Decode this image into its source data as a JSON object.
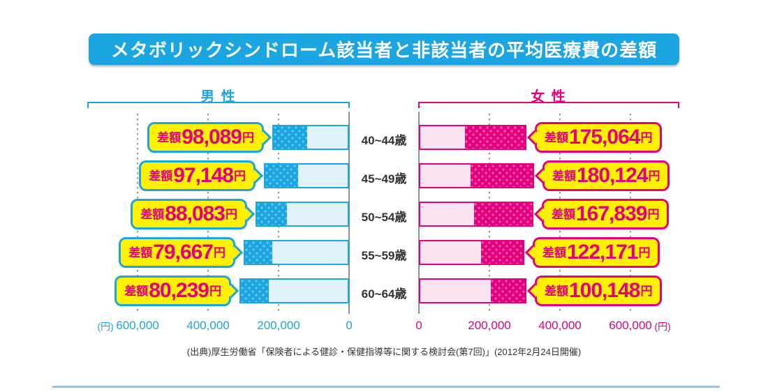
{
  "title": "メタボリックシンドローム該当者と非該当者の平均医療費の差額",
  "source": "(出典)厚生労働省「保険者による健診・保健指導等に関する検討会(第7回)」(2012年2月24日開催)",
  "colors": {
    "male": "#1BA6E2",
    "female": "#E4007F",
    "yellow": "#FFF100",
    "male_light": "#E0F2FB",
    "female_light": "#FBE2F0",
    "male_dot": "#6FC9F0",
    "female_dot": "#EF6AAE",
    "axis": "#8E8E8E",
    "grid": "#9B9B9B",
    "text": "#333333",
    "rule": "#84CBEE"
  },
  "chart_data": {
    "type": "bar",
    "orientation": "horizontal-diverging",
    "grid": "dotted-vertical",
    "categories": [
      "40~44歳",
      "45~49歳",
      "50~54歳",
      "55~59歳",
      "60~64歳"
    ],
    "series": [
      {
        "key": "male",
        "header": "男 性",
        "side": "left",
        "diff_label_prefix": "差額",
        "diff_label_suffix": "円",
        "diff_values": [
          98089,
          97148,
          88083,
          79667,
          80239
        ],
        "diff_value_labels": [
          "98,089",
          "97,148",
          "88,083",
          "79,667",
          "80,239"
        ],
        "base_values_estimated": [
          120000,
          145000,
          178000,
          220000,
          230000
        ]
      },
      {
        "key": "female",
        "header": "女 性",
        "side": "right",
        "diff_label_prefix": "差額",
        "diff_label_suffix": "円",
        "diff_values": [
          175064,
          180124,
          167839,
          122171,
          100148
        ],
        "diff_value_labels": [
          "175,064",
          "180,124",
          "167,839",
          "122,171",
          "100,148"
        ],
        "base_values_estimated": [
          130000,
          146000,
          156000,
          177000,
          205000
        ]
      }
    ],
    "x_axis": {
      "unit": "(円)",
      "max": 600000,
      "ticks": [
        {
          "value": 0,
          "label": "0"
        },
        {
          "value": 200000,
          "label": "200,000"
        },
        {
          "value": 400000,
          "label": "400,000"
        },
        {
          "value": 600000,
          "label": "600,000"
        }
      ]
    }
  }
}
